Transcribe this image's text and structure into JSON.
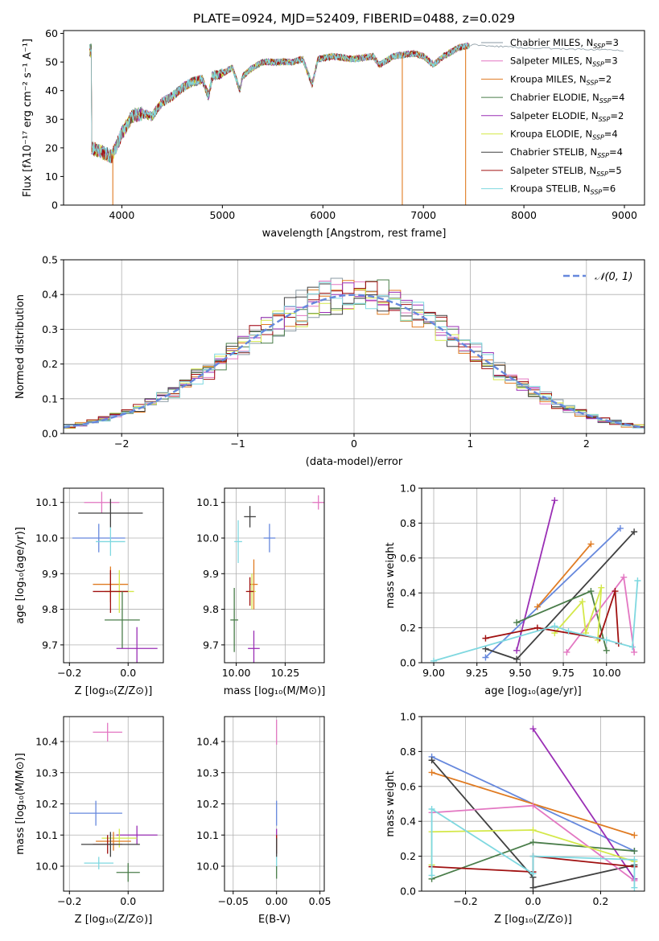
{
  "figure": {
    "title": "PLATE=0924, MJD=52409, FIBERID=0488, z=0.029"
  },
  "colors": {
    "chabrier_miles": "#8a9aa3",
    "salpeter_miles": "#e377c2",
    "kroupa_miles": "#e07b22",
    "chabrier_elodie": "#4a7d4a",
    "salpeter_elodie": "#9a2fb5",
    "kroupa_elodie": "#d4e84a",
    "chabrier_stelib": "#404040",
    "salpeter_stelib": "#a01010",
    "kroupa_stelib": "#7fd8e0",
    "cornflower": "#6688dd",
    "grid": "#b0b0b0"
  },
  "chart_data": [
    {
      "id": "spectrum",
      "type": "line",
      "xlabel": "wavelength [Angstrom, rest frame]",
      "ylabel": "Flux [fλ10⁻¹⁷ erg cm⁻² s⁻¹ A⁻¹]",
      "xlim": [
        3420,
        9200
      ],
      "ylim": [
        0,
        61
      ],
      "xticks": [
        4000,
        5000,
        6000,
        7000,
        8000,
        9000
      ],
      "yticks": [
        0,
        10,
        20,
        30,
        40,
        50,
        60
      ],
      "grid": false,
      "legend_position": "upper right",
      "series": [
        {
          "name": "Chabrier MILES, N_SSP=3",
          "color_key": "chabrier_miles"
        },
        {
          "name": "Salpeter MILES, N_SSP=3",
          "color_key": "salpeter_miles"
        },
        {
          "name": "Kroupa MILES, N_SSP=2",
          "color_key": "kroupa_miles"
        },
        {
          "name": "Chabrier ELODIE, N_SSP=4",
          "color_key": "chabrier_elodie"
        },
        {
          "name": "Salpeter ELODIE, N_SSP=2",
          "color_key": "salpeter_elodie"
        },
        {
          "name": "Kroupa ELODIE, N_SSP=4",
          "color_key": "kroupa_elodie"
        },
        {
          "name": "Chabrier STELIB, N_SSP=4",
          "color_key": "chabrier_stelib"
        },
        {
          "name": "Salpeter STELIB, N_SSP=5",
          "color_key": "salpeter_stelib"
        },
        {
          "name": "Kroupa STELIB, N_SSP=6",
          "color_key": "kroupa_stelib"
        }
      ],
      "continuum": [
        [
          3700,
          20
        ],
        [
          3900,
          17
        ],
        [
          4000,
          25
        ],
        [
          4100,
          31
        ],
        [
          4200,
          32
        ],
        [
          4300,
          31
        ],
        [
          4400,
          36
        ],
        [
          4500,
          38
        ],
        [
          4600,
          41
        ],
        [
          4700,
          43
        ],
        [
          4800,
          44
        ],
        [
          4861,
          38
        ],
        [
          4900,
          45
        ],
        [
          5000,
          46
        ],
        [
          5100,
          48
        ],
        [
          5175,
          40
        ],
        [
          5200,
          45
        ],
        [
          5300,
          48
        ],
        [
          5400,
          50
        ],
        [
          5500,
          50
        ],
        [
          5600,
          50
        ],
        [
          5700,
          50
        ],
        [
          5800,
          51
        ],
        [
          5893,
          42
        ],
        [
          5950,
          51
        ],
        [
          6100,
          52
        ],
        [
          6300,
          51
        ],
        [
          6500,
          52
        ],
        [
          6563,
          49
        ],
        [
          6700,
          52
        ],
        [
          6900,
          53
        ],
        [
          7000,
          52
        ],
        [
          7100,
          49
        ],
        [
          7200,
          52
        ],
        [
          7350,
          55
        ],
        [
          7500,
          56
        ],
        [
          8000,
          55
        ],
        [
          9000,
          54
        ]
      ],
      "dropouts": [
        {
          "x": 3910,
          "color_key": "kroupa_miles"
        },
        {
          "x": 6790,
          "color_key": "kroupa_miles"
        },
        {
          "x": 7420,
          "color_key": "kroupa_miles"
        }
      ]
    },
    {
      "id": "residuals",
      "type": "histogram",
      "xlabel": "(data-model)/error",
      "ylabel": "Normed distribution",
      "xlim": [
        -2.5,
        2.5
      ],
      "ylim": [
        0,
        0.5
      ],
      "xticks": [
        -2,
        -1,
        0,
        1,
        2
      ],
      "yticks": [
        0.0,
        0.1,
        0.2,
        0.3,
        0.4,
        0.5
      ],
      "grid": true,
      "legend_position": "upper right",
      "legend": "𝒩(0, 1)",
      "bin_width": 0.1
    },
    {
      "id": "age_vs_Z",
      "type": "scatter",
      "xlabel": "Z [log₁₀(Z/Z⊙)]",
      "ylabel": "age  [log₁₀(age/yr)]",
      "xlim": [
        -0.22,
        0.12
      ],
      "ylim": [
        9.65,
        10.14
      ],
      "xticks": [
        -0.2,
        0.0
      ],
      "yticks": [
        9.7,
        9.8,
        9.9,
        10.0,
        10.1
      ],
      "grid": true,
      "points": [
        {
          "color_key": "salpeter_miles",
          "x": -0.09,
          "y": 10.1,
          "xerr": 0.06,
          "yerr": 0.03
        },
        {
          "color_key": "chabrier_stelib",
          "x": -0.06,
          "y": 10.07,
          "xerr": 0.11,
          "yerr": 0.04
        },
        {
          "color_key": "cornflower",
          "x": -0.1,
          "y": 10.0,
          "xerr": 0.09,
          "yerr": 0.04
        },
        {
          "color_key": "kroupa_stelib",
          "x": -0.06,
          "y": 9.99,
          "xerr": 0.05,
          "yerr": 0.04
        },
        {
          "color_key": "kroupa_miles",
          "x": -0.06,
          "y": 9.87,
          "xerr": 0.06,
          "yerr": 0.05
        },
        {
          "color_key": "kroupa_elodie",
          "x": -0.03,
          "y": 9.85,
          "xerr": 0.05,
          "yerr": 0.06
        },
        {
          "color_key": "salpeter_stelib",
          "x": -0.06,
          "y": 9.85,
          "xerr": 0.06,
          "yerr": 0.06
        },
        {
          "color_key": "chabrier_elodie",
          "x": -0.02,
          "y": 9.77,
          "xerr": 0.06,
          "yerr": 0.08
        },
        {
          "color_key": "salpeter_elodie",
          "x": 0.03,
          "y": 9.69,
          "xerr": 0.07,
          "yerr": 0.06
        }
      ]
    },
    {
      "id": "age_vs_mass",
      "type": "scatter",
      "xlabel": "mass [log₁₀(M/M⊙)]",
      "ylabel": "",
      "xlim": [
        9.94,
        10.45
      ],
      "ylim": [
        9.65,
        10.14
      ],
      "xticks": [
        10.0,
        10.25
      ],
      "xtick_labels": [
        "10.00",
        "10.25"
      ],
      "yticks": [
        9.7,
        9.8,
        9.9,
        10.0,
        10.1
      ],
      "grid": true,
      "points": [
        {
          "color_key": "salpeter_miles",
          "x": 10.42,
          "y": 10.1,
          "xerr": 0.03,
          "yerr": 0.02
        },
        {
          "color_key": "chabrier_stelib",
          "x": 10.07,
          "y": 10.06,
          "xerr": 0.03,
          "yerr": 0.03
        },
        {
          "color_key": "cornflower",
          "x": 10.17,
          "y": 10.0,
          "xerr": 0.03,
          "yerr": 0.04
        },
        {
          "color_key": "kroupa_stelib",
          "x": 10.01,
          "y": 9.99,
          "xerr": 0.02,
          "yerr": 0.06
        },
        {
          "color_key": "kroupa_miles",
          "x": 10.09,
          "y": 9.87,
          "xerr": 0.02,
          "yerr": 0.07
        },
        {
          "color_key": "kroupa_elodie",
          "x": 10.08,
          "y": 9.85,
          "xerr": 0.02,
          "yerr": 0.05
        },
        {
          "color_key": "salpeter_stelib",
          "x": 10.07,
          "y": 9.85,
          "xerr": 0.02,
          "yerr": 0.04
        },
        {
          "color_key": "chabrier_elodie",
          "x": 9.99,
          "y": 9.77,
          "xerr": 0.02,
          "yerr": 0.09
        },
        {
          "color_key": "salpeter_elodie",
          "x": 10.09,
          "y": 9.69,
          "xerr": 0.03,
          "yerr": 0.05
        }
      ]
    },
    {
      "id": "weight_vs_age",
      "type": "line",
      "xlabel": "age  [log₁₀(age/yr)]",
      "ylabel": "mass weight",
      "xlim": [
        8.93,
        10.22
      ],
      "ylim": [
        0,
        1.0
      ],
      "xticks": [
        9.0,
        9.25,
        9.5,
        9.75,
        10.0
      ],
      "xtick_labels": [
        "9.00",
        "9.25",
        "9.50",
        "9.75",
        "10.00"
      ],
      "yticks": [
        0.0,
        0.2,
        0.4,
        0.6,
        0.8,
        1.0
      ],
      "grid": true,
      "series": [
        {
          "color_key": "cornflower",
          "points": [
            [
              9.3,
              0.03
            ],
            [
              10.08,
              0.77
            ]
          ]
        },
        {
          "color_key": "salpeter_elodie",
          "points": [
            [
              9.48,
              0.07
            ],
            [
              9.7,
              0.93
            ]
          ]
        },
        {
          "color_key": "kroupa_miles",
          "points": [
            [
              9.6,
              0.32
            ],
            [
              9.91,
              0.68
            ]
          ]
        },
        {
          "color_key": "chabrier_stelib",
          "points": [
            [
              9.3,
              0.08
            ],
            [
              9.48,
              0.02
            ],
            [
              10.16,
              0.75
            ]
          ]
        },
        {
          "color_key": "chabrier_elodie",
          "points": [
            [
              9.48,
              0.23
            ],
            [
              9.91,
              0.41
            ],
            [
              10.0,
              0.07
            ]
          ]
        },
        {
          "color_key": "salpeter_miles",
          "points": [
            [
              9.77,
              0.06
            ],
            [
              10.1,
              0.49
            ],
            [
              10.16,
              0.06
            ]
          ]
        },
        {
          "color_key": "kroupa_elodie",
          "points": [
            [
              9.7,
              0.17
            ],
            [
              9.86,
              0.35
            ],
            [
              9.88,
              0.17
            ],
            [
              9.97,
              0.43
            ],
            [
              9.95,
              0.13
            ]
          ]
        },
        {
          "color_key": "salpeter_stelib",
          "points": [
            [
              9.3,
              0.14
            ],
            [
              9.6,
              0.2
            ],
            [
              9.96,
              0.14
            ],
            [
              10.05,
              0.41
            ],
            [
              10.07,
              0.11
            ]
          ]
        },
        {
          "color_key": "kroupa_stelib",
          "points": [
            [
              9.0,
              0.01
            ],
            [
              9.7,
              0.21
            ],
            [
              9.78,
              0.18
            ],
            [
              10.0,
              0.13
            ],
            [
              10.15,
              0.09
            ],
            [
              10.18,
              0.47
            ]
          ]
        }
      ]
    },
    {
      "id": "mass_vs_Z",
      "type": "scatter",
      "xlabel": "Z [log₁₀(Z/Z⊙)]",
      "ylabel": "mass [log₁₀(M/M⊙)]",
      "xlim": [
        -0.22,
        0.12
      ],
      "ylim": [
        9.92,
        10.48
      ],
      "xticks": [
        -0.2,
        0.0
      ],
      "yticks": [
        10.0,
        10.1,
        10.2,
        10.3,
        10.4
      ],
      "grid": true,
      "points": [
        {
          "color_key": "salpeter_miles",
          "x": -0.07,
          "y": 10.43,
          "xerr": 0.05,
          "yerr": 0.03
        },
        {
          "color_key": "cornflower",
          "x": -0.11,
          "y": 10.17,
          "xerr": 0.09,
          "yerr": 0.04
        },
        {
          "color_key": "salpeter_elodie",
          "x": 0.03,
          "y": 10.1,
          "xerr": 0.07,
          "yerr": 0.03
        },
        {
          "color_key": "kroupa_elodie",
          "x": -0.03,
          "y": 10.09,
          "xerr": 0.06,
          "yerr": 0.03
        },
        {
          "color_key": "kroupa_miles",
          "x": -0.05,
          "y": 10.08,
          "xerr": 0.06,
          "yerr": 0.03
        },
        {
          "color_key": "salpeter_stelib",
          "x": -0.07,
          "y": 10.07,
          "xerr": 0.05,
          "yerr": 0.03
        },
        {
          "color_key": "chabrier_stelib",
          "x": -0.06,
          "y": 10.07,
          "xerr": 0.1,
          "yerr": 0.04
        },
        {
          "color_key": "kroupa_stelib",
          "x": -0.1,
          "y": 10.01,
          "xerr": 0.05,
          "yerr": 0.02
        },
        {
          "color_key": "chabrier_elodie",
          "x": 0.0,
          "y": 9.98,
          "xerr": 0.04,
          "yerr": 0.03
        }
      ]
    },
    {
      "id": "mass_vs_ebv",
      "type": "scatter",
      "xlabel": "E(B-V)",
      "ylabel": "",
      "xlim": [
        -0.06,
        0.055
      ],
      "ylim": [
        9.92,
        10.48
      ],
      "xticks": [
        -0.05,
        0.0,
        0.05
      ],
      "xtick_labels": [
        "−0.05",
        "0.00",
        "0.05"
      ],
      "yticks": [
        10.0,
        10.1,
        10.2,
        10.3,
        10.4
      ],
      "grid": true,
      "points": [
        {
          "color_key": "salpeter_miles",
          "x": 0.0,
          "y": 10.43,
          "xerr": 0.0,
          "yerr": 0.04
        },
        {
          "color_key": "cornflower",
          "x": 0.0,
          "y": 10.17,
          "xerr": 0.0,
          "yerr": 0.04
        },
        {
          "color_key": "salpeter_elodie",
          "x": 0.0,
          "y": 10.1,
          "xerr": 0.0,
          "yerr": 0.02
        },
        {
          "color_key": "kroupa_miles",
          "x": 0.0,
          "y": 10.08,
          "xerr": 0.0,
          "yerr": 0.02
        },
        {
          "color_key": "salpeter_stelib",
          "x": 0.0,
          "y": 10.07,
          "xerr": 0.0,
          "yerr": 0.03
        },
        {
          "color_key": "chabrier_stelib",
          "x": 0.0,
          "y": 10.06,
          "xerr": 0.0,
          "yerr": 0.03
        },
        {
          "color_key": "kroupa_stelib",
          "x": 0.0,
          "y": 10.01,
          "xerr": 0.0,
          "yerr": 0.02
        },
        {
          "color_key": "chabrier_elodie",
          "x": 0.0,
          "y": 9.98,
          "xerr": 0.0,
          "yerr": 0.02
        }
      ]
    },
    {
      "id": "weight_vs_Z",
      "type": "line",
      "xlabel": "Z [log₁₀(Z/Z⊙)]",
      "ylabel": "mass weight",
      "xlim": [
        -0.33,
        0.33
      ],
      "ylim": [
        0,
        1.0
      ],
      "xticks": [
        -0.2,
        0.0,
        0.2
      ],
      "yticks": [
        0.0,
        0.2,
        0.4,
        0.6,
        0.8,
        1.0
      ],
      "grid": true,
      "series": [
        {
          "color_key": "cornflower",
          "points": [
            [
              -0.3,
              0.77
            ],
            [
              0.3,
              0.23
            ]
          ]
        },
        {
          "color_key": "salpeter_elodie",
          "points": [
            [
              0.0,
              0.93
            ],
            [
              0.3,
              0.07
            ]
          ]
        },
        {
          "color_key": "kroupa_miles",
          "points": [
            [
              -0.3,
              0.68
            ],
            [
              0.3,
              0.32
            ]
          ]
        },
        {
          "color_key": "chabrier_stelib",
          "points": [
            [
              -0.3,
              0.75
            ],
            [
              0.0,
              0.08
            ],
            [
              0.0,
              0.02
            ],
            [
              0.3,
              0.15
            ]
          ]
        },
        {
          "color_key": "chabrier_elodie",
          "points": [
            [
              -0.3,
              0.07
            ],
            [
              0.0,
              0.28
            ],
            [
              0.3,
              0.23
            ]
          ]
        },
        {
          "color_key": "salpeter_miles",
          "points": [
            [
              -0.3,
              0.45
            ],
            [
              0.0,
              0.49
            ],
            [
              0.3,
              0.06
            ]
          ]
        },
        {
          "color_key": "kroupa_elodie",
          "points": [
            [
              -0.3,
              0.15
            ],
            [
              -0.3,
              0.34
            ],
            [
              0.0,
              0.35
            ],
            [
              0.3,
              0.17
            ]
          ]
        },
        {
          "color_key": "salpeter_stelib",
          "points": [
            [
              -0.3,
              0.14
            ],
            [
              0.0,
              0.11
            ],
            [
              0.0,
              0.2
            ],
            [
              0.3,
              0.14
            ]
          ]
        },
        {
          "color_key": "kroupa_stelib",
          "points": [
            [
              -0.3,
              0.09
            ],
            [
              -0.3,
              0.47
            ],
            [
              0.0,
              0.1
            ],
            [
              0.0,
              0.2
            ],
            [
              0.3,
              0.18
            ],
            [
              0.3,
              0.02
            ]
          ]
        }
      ]
    }
  ]
}
